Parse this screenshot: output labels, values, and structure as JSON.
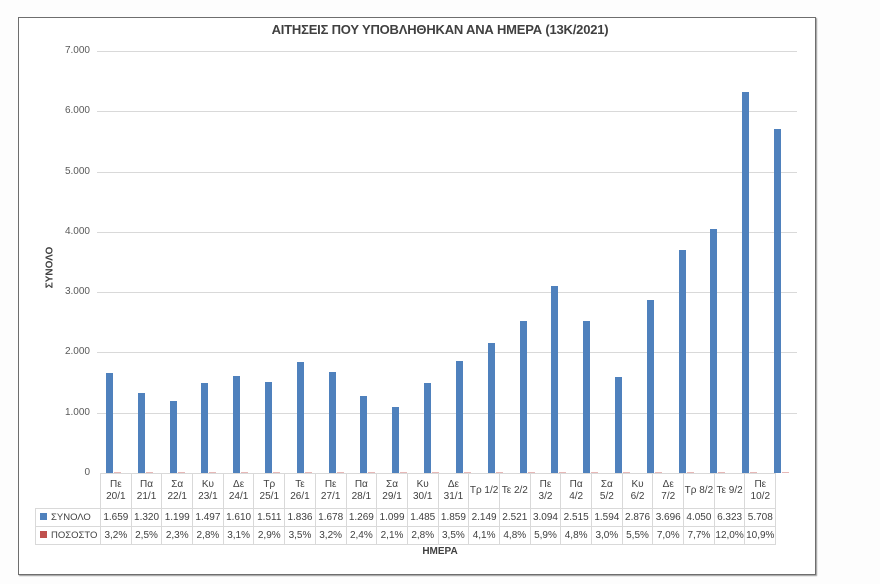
{
  "chart_data": {
    "type": "bar",
    "title": "ΑΙΤΗΣΕΙΣ ΠΟΥ ΥΠΟΒΛΗΘΗΚΑΝ ΑΝΑ ΗΜΕΡΑ (13Κ/2021)",
    "xlabel": "ΗΜΕΡΑ",
    "ylabel": "ΣΥΝΟΛΟ",
    "ylim": [
      0,
      7000
    ],
    "yticks": [
      "0",
      "1.000",
      "2.000",
      "3.000",
      "4.000",
      "5.000",
      "6.000",
      "7.000"
    ],
    "grid": true,
    "legend_position": "data-table",
    "categories": [
      "Πε 20/1",
      "Πα 21/1",
      "Σα 22/1",
      "Κυ 23/1",
      "Δε 24/1",
      "Τρ 25/1",
      "Τε 26/1",
      "Πε 27/1",
      "Πα 28/1",
      "Σα 29/1",
      "Κυ 30/1",
      "Δε 31/1",
      "Τρ 1/2",
      "Τε 2/2",
      "Πε 3/2",
      "Πα 4/2",
      "Σα 5/2",
      "Κυ 6/2",
      "Δε 7/2",
      "Τρ 8/2",
      "Τε 9/2",
      "Πε 10/2"
    ],
    "series": [
      {
        "name": "ΣΥΝΟΛΟ",
        "color": "#4f81bd",
        "values": [
          1659,
          1320,
          1199,
          1497,
          1610,
          1511,
          1836,
          1678,
          1269,
          1099,
          1485,
          1859,
          2149,
          2521,
          3094,
          2515,
          1594,
          2876,
          3696,
          4050,
          6323,
          5708
        ],
        "labels": [
          "1.659",
          "1.320",
          "1.199",
          "1.497",
          "1.610",
          "1.511",
          "1.836",
          "1.678",
          "1.269",
          "1.099",
          "1.485",
          "1.859",
          "2.149",
          "2.521",
          "3.094",
          "2.515",
          "1.594",
          "2.876",
          "3.696",
          "4.050",
          "6.323",
          "5.708"
        ]
      },
      {
        "name": "ΠΟΣΟΣΤΟ",
        "color": "#c0504d",
        "values": [
          3.2,
          2.5,
          2.3,
          2.8,
          3.1,
          2.9,
          3.5,
          3.2,
          2.4,
          2.1,
          2.8,
          3.5,
          4.1,
          4.8,
          5.9,
          4.8,
          3.0,
          5.5,
          7.0,
          7.7,
          12.0,
          10.9
        ],
        "labels": [
          "3,2%",
          "2,5%",
          "2,3%",
          "2,8%",
          "3,1%",
          "2,9%",
          "3,5%",
          "3,2%",
          "2,4%",
          "2,1%",
          "2,8%",
          "3,5%",
          "4,1%",
          "4,8%",
          "5,9%",
          "4,8%",
          "3,0%",
          "5,5%",
          "7,0%",
          "7,7%",
          "12,0%",
          "10,9%"
        ]
      }
    ],
    "header_lines": [
      [
        "Πε",
        "20/1"
      ],
      [
        "Πα",
        "21/1"
      ],
      [
        "Σα",
        "22/1"
      ],
      [
        "Κυ",
        "23/1"
      ],
      [
        "Δε",
        "24/1"
      ],
      [
        "Τρ",
        "25/1"
      ],
      [
        "Τε",
        "26/1"
      ],
      [
        "Πε",
        "27/1"
      ],
      [
        "Πα",
        "28/1"
      ],
      [
        "Σα",
        "29/1"
      ],
      [
        "Κυ",
        "30/1"
      ],
      [
        "Δε",
        "31/1"
      ],
      [
        "Τρ 1/2",
        ""
      ],
      [
        "Τε 2/2",
        ""
      ],
      [
        "Πε",
        "3/2"
      ],
      [
        "Πα",
        "4/2"
      ],
      [
        "Σα",
        "5/2"
      ],
      [
        "Κυ",
        "6/2"
      ],
      [
        "Δε",
        "7/2"
      ],
      [
        "Τρ 8/2",
        ""
      ],
      [
        "Τε 9/2",
        ""
      ],
      [
        "Πε",
        "10/2"
      ]
    ]
  }
}
